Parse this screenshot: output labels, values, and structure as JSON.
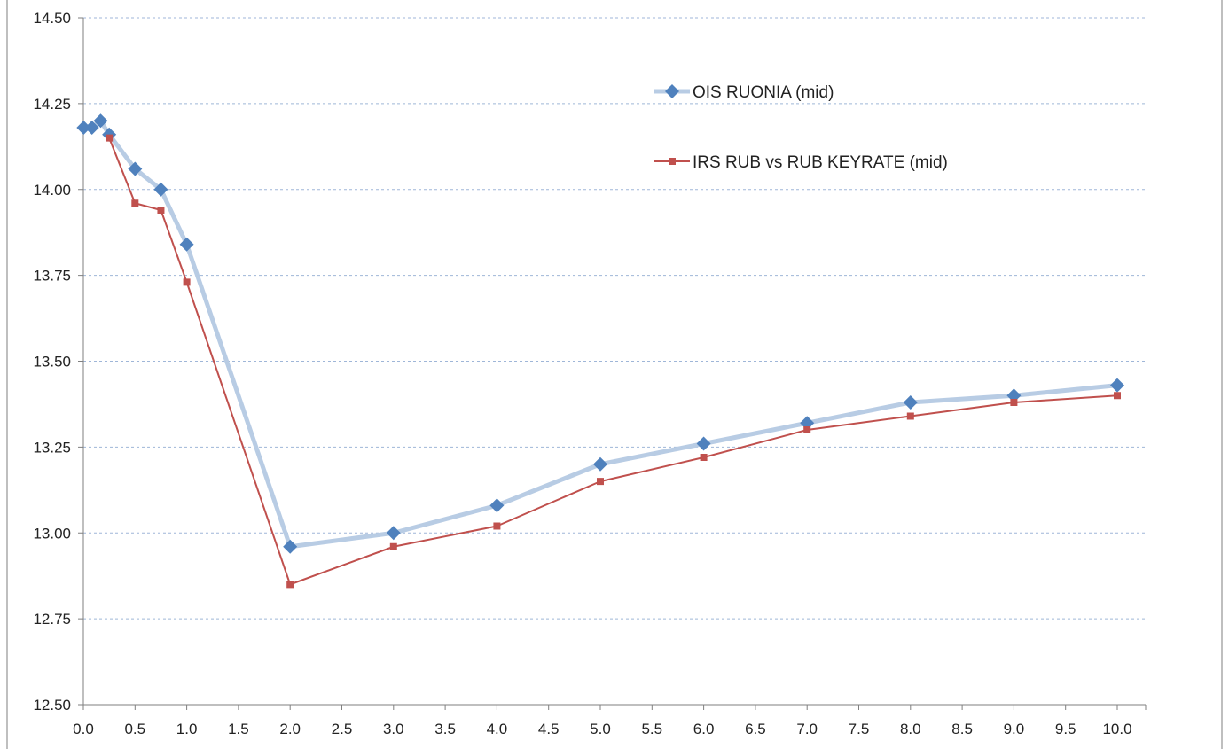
{
  "chart_data": {
    "type": "line",
    "title": "",
    "xlabel": "",
    "ylabel": "",
    "xlim": [
      0.0,
      10.0
    ],
    "ylim": [
      12.5,
      14.5
    ],
    "x_ticks": [
      "0.0",
      "0.5",
      "1.0",
      "1.5",
      "2.0",
      "2.5",
      "3.0",
      "3.5",
      "4.0",
      "4.5",
      "5.0",
      "5.5",
      "6.0",
      "6.5",
      "7.0",
      "7.5",
      "8.0",
      "8.5",
      "9.0",
      "9.5",
      "10.0"
    ],
    "y_ticks": [
      "12.50",
      "12.75",
      "13.00",
      "13.25",
      "13.50",
      "13.75",
      "14.00",
      "14.25",
      "14.50"
    ],
    "grid": "horizontal dashed",
    "legend_position": "top-right",
    "series": [
      {
        "name": "OIS RUONIA (mid)",
        "color": "#b8cce4",
        "marker_color": "#4f81bd",
        "marker": "diamond",
        "x": [
          0.003,
          0.083,
          0.167,
          0.25,
          0.5,
          0.75,
          1.0,
          2.0,
          3.0,
          4.0,
          5.0,
          6.0,
          7.0,
          8.0,
          9.0,
          10.0
        ],
        "y": [
          14.18,
          14.18,
          14.2,
          14.16,
          14.06,
          14.0,
          13.84,
          12.96,
          13.0,
          13.08,
          13.2,
          13.26,
          13.32,
          13.38,
          13.4,
          13.43
        ]
      },
      {
        "name": "IRS RUB vs RUB KEYRATE (mid)",
        "color": "#c0504d",
        "marker_color": "#c0504d",
        "marker": "square",
        "x": [
          0.25,
          0.5,
          0.75,
          1.0,
          2.0,
          3.0,
          4.0,
          5.0,
          6.0,
          7.0,
          8.0,
          9.0,
          10.0
        ],
        "y": [
          14.15,
          13.96,
          13.94,
          13.73,
          12.85,
          12.96,
          13.02,
          13.15,
          13.22,
          13.3,
          13.34,
          13.38,
          13.4
        ]
      }
    ]
  }
}
